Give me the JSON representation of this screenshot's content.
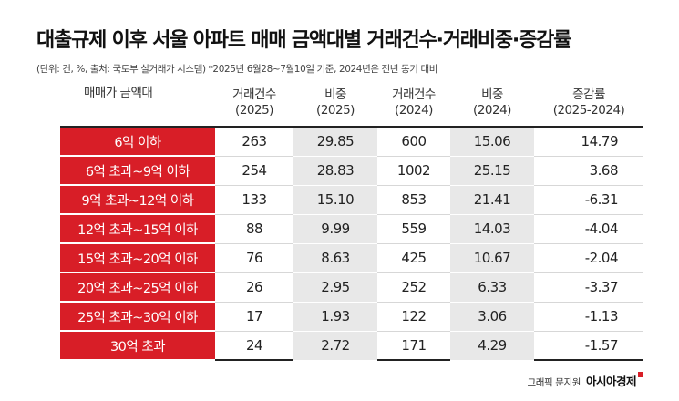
{
  "title": "대출규제 이후 서울 아파트 매매 금액대별 거래건수·거래비중·증감률",
  "subtitle": "(단위: 건, %, 출처: 국토부 실거래가 시스템) *2025년 6월28~7월10일 기준, 2024년은 전년 동기 대비",
  "credit": {
    "label": "그래픽 문지원",
    "brand": "아시아경제"
  },
  "colors": {
    "band_background": "#d81e27",
    "shaded_column": "#e8e8e8"
  },
  "chart_data": {
    "type": "table",
    "headers": {
      "band": "매매가 금액대",
      "count_2025": [
        "거래건수",
        "(2025)"
      ],
      "share_2025": [
        "비중",
        "(2025)"
      ],
      "count_2024": [
        "거래건수",
        "(2024)"
      ],
      "share_2024": [
        "비중",
        "(2024)"
      ],
      "change": [
        "증감률",
        "(2025-2024)"
      ]
    },
    "rows": [
      {
        "band": "6억 이하",
        "count_2025": "263",
        "share_2025": "29.85",
        "count_2024": "600",
        "share_2024": "15.06",
        "change": "14.79"
      },
      {
        "band": "6억 초과~9억 이하",
        "count_2025": "254",
        "share_2025": "28.83",
        "count_2024": "1002",
        "share_2024": "25.15",
        "change": "3.68"
      },
      {
        "band": "9억 초과~12억 이하",
        "count_2025": "133",
        "share_2025": "15.10",
        "count_2024": "853",
        "share_2024": "21.41",
        "change": "-6.31"
      },
      {
        "band": "12억 초과~15억 이하",
        "count_2025": "88",
        "share_2025": "9.99",
        "count_2024": "559",
        "share_2024": "14.03",
        "change": "-4.04"
      },
      {
        "band": "15억 초과~20억 이하",
        "count_2025": "76",
        "share_2025": "8.63",
        "count_2024": "425",
        "share_2024": "10.67",
        "change": "-2.04"
      },
      {
        "band": "20억 초과~25억 이하",
        "count_2025": "26",
        "share_2025": "2.95",
        "count_2024": "252",
        "share_2024": "6.33",
        "change": "-3.37"
      },
      {
        "band": "25억 초과~30억 이하",
        "count_2025": "17",
        "share_2025": "1.93",
        "count_2024": "122",
        "share_2024": "3.06",
        "change": "-1.13"
      },
      {
        "band": "30억 초과",
        "count_2025": "24",
        "share_2025": "2.72",
        "count_2024": "171",
        "share_2024": "4.29",
        "change": "-1.57"
      }
    ]
  }
}
